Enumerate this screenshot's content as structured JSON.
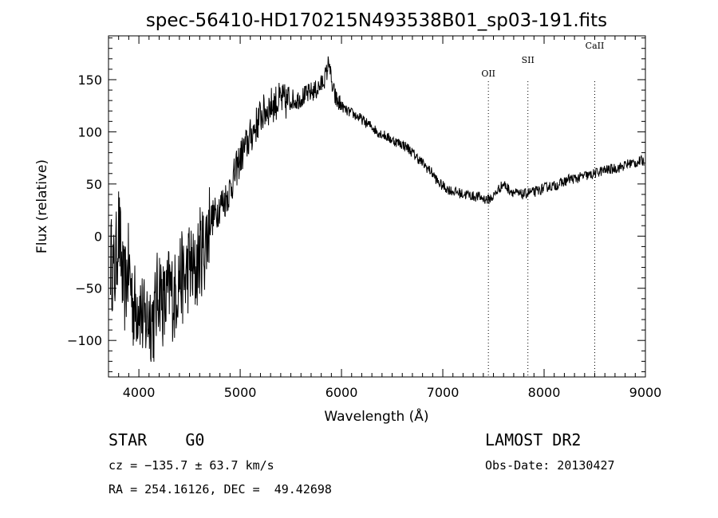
{
  "chart_data": {
    "type": "line",
    "title": "spec-56410-HD170215N493538B01_sp03-191.fits",
    "xlabel": "Wavelength (Å)",
    "ylabel": "Flux (relative)",
    "xlim": [
      3700,
      9000
    ],
    "ylim": [
      -135,
      192
    ],
    "x_ticks": [
      4000,
      5000,
      6000,
      7000,
      8000,
      9000
    ],
    "x_tick_labels": [
      "4000",
      "5000",
      "6000",
      "7000",
      "8000",
      "9000"
    ],
    "y_ticks": [
      -100,
      -50,
      0,
      50,
      100,
      150
    ],
    "y_tick_labels": [
      "−100",
      "−50",
      "0",
      "50",
      "100",
      "150"
    ],
    "grid": false,
    "series": [
      {
        "x": [
          3720,
          3760,
          3800,
          3850,
          3900,
          3950,
          4000,
          4050,
          4100,
          4150,
          4200,
          4250,
          4300,
          4350,
          4400,
          4450,
          4500,
          4550,
          4600,
          4650,
          4700,
          4750,
          4800,
          4850,
          4900,
          4950,
          5000,
          5050,
          5100,
          5150,
          5200,
          5250,
          5300,
          5350,
          5400,
          5450,
          5500,
          5550,
          5600,
          5650,
          5700,
          5750,
          5800,
          5850,
          5880,
          5900,
          5950,
          6000,
          6050,
          6100,
          6150,
          6200,
          6250,
          6300,
          6350,
          6400,
          6450,
          6500,
          6550,
          6600,
          6650,
          6700,
          6750,
          6800,
          6850,
          6900,
          6950,
          7000,
          7050,
          7100,
          7150,
          7200,
          7250,
          7300,
          7350,
          7400,
          7450,
          7500,
          7550,
          7600,
          7650,
          7700,
          7750,
          7800,
          7850,
          7900,
          7950,
          8000,
          8050,
          8100,
          8150,
          8200,
          8250,
          8300,
          8350,
          8400,
          8450,
          8500,
          8550,
          8600,
          8650,
          8700,
          8750,
          8800,
          8850,
          8900,
          8950,
          8990
        ],
        "y": [
          -20,
          -40,
          10,
          -55,
          -30,
          -70,
          -60,
          -85,
          -75,
          -80,
          -45,
          -70,
          -50,
          -60,
          -35,
          -45,
          -25,
          -40,
          -15,
          -10,
          15,
          20,
          30,
          35,
          45,
          60,
          75,
          85,
          95,
          105,
          115,
          120,
          125,
          128,
          130,
          128,
          132,
          130,
          133,
          135,
          138,
          140,
          145,
          155,
          170,
          145,
          130,
          125,
          120,
          118,
          115,
          112,
          108,
          105,
          100,
          98,
          95,
          92,
          90,
          88,
          85,
          80,
          75,
          70,
          65,
          60,
          52,
          48,
          45,
          43,
          42,
          40,
          40,
          38,
          38,
          36,
          35,
          38,
          45,
          50,
          45,
          42,
          40,
          40,
          42,
          42,
          44,
          46,
          48,
          48,
          50,
          52,
          55,
          55,
          56,
          58,
          58,
          60,
          62,
          63,
          64,
          65,
          66,
          68,
          70,
          70,
          72,
          72
        ]
      }
    ],
    "lines": [
      {
        "label": "OII",
        "x": 7450
      },
      {
        "label": "SII",
        "x": 7840
      },
      {
        "label": "CaII",
        "x": 8500
      }
    ]
  },
  "info": {
    "object": "STAR    G0",
    "survey": "LAMOST DR2",
    "cz": "cz = −135.7 ± 63.7 km/s",
    "obs_date": "Obs-Date: 20130427",
    "coords": "RA = 254.16126, DEC =  49.42698"
  }
}
